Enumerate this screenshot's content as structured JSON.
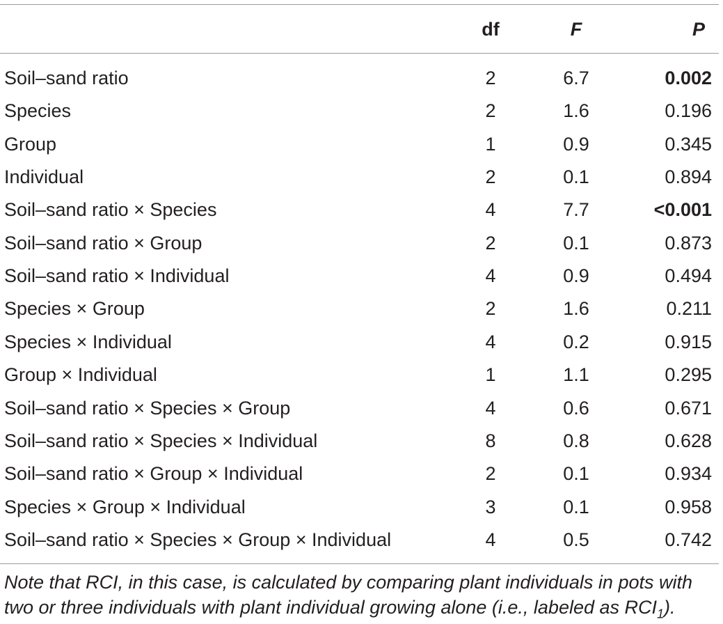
{
  "header": {
    "col1": "",
    "col2": "df",
    "col3": "F",
    "col4": "P"
  },
  "rows": [
    {
      "name": "Soil–sand ratio",
      "df": "2",
      "f": "6.7",
      "p": "0.002",
      "p_bold": true
    },
    {
      "name": "Species",
      "df": "2",
      "f": "1.6",
      "p": "0.196",
      "p_bold": false
    },
    {
      "name": "Group",
      "df": "1",
      "f": "0.9",
      "p": "0.345",
      "p_bold": false
    },
    {
      "name": "Individual",
      "df": "2",
      "f": "0.1",
      "p": "0.894",
      "p_bold": false
    },
    {
      "name": "Soil–sand ratio × Species",
      "df": "4",
      "f": "7.7",
      "p": "<0.001",
      "p_bold": true
    },
    {
      "name": "Soil–sand ratio × Group",
      "df": "2",
      "f": "0.1",
      "p": "0.873",
      "p_bold": false
    },
    {
      "name": "Soil–sand ratio × Individual",
      "df": "4",
      "f": "0.9",
      "p": "0.494",
      "p_bold": false
    },
    {
      "name": "Species × Group",
      "df": "2",
      "f": "1.6",
      "p": "0.211",
      "p_bold": false
    },
    {
      "name": "Species × Individual",
      "df": "4",
      "f": "0.2",
      "p": "0.915",
      "p_bold": false
    },
    {
      "name": "Group × Individual",
      "df": "1",
      "f": "1.1",
      "p": "0.295",
      "p_bold": false
    },
    {
      "name": "Soil–sand ratio × Species × Group",
      "df": "4",
      "f": "0.6",
      "p": "0.671",
      "p_bold": false
    },
    {
      "name": "Soil–sand ratio × Species × Individual",
      "df": "8",
      "f": "0.8",
      "p": "0.628",
      "p_bold": false
    },
    {
      "name": "Soil–sand ratio × Group × Individual",
      "df": "2",
      "f": "0.1",
      "p": "0.934",
      "p_bold": false
    },
    {
      "name": "Species × Group × Individual",
      "df": "3",
      "f": "0.1",
      "p": "0.958",
      "p_bold": false
    },
    {
      "name": "Soil–sand ratio × Species × Group × Individual",
      "df": "4",
      "f": "0.5",
      "p": "0.742",
      "p_bold": false
    }
  ],
  "note": {
    "text": "Note that RCI, in this case, is calculated by comparing plant individuals in pots with two or three individuals with plant individual growing alone (i.e., labeled as RCI",
    "subscript": "1",
    "suffix": ")."
  }
}
